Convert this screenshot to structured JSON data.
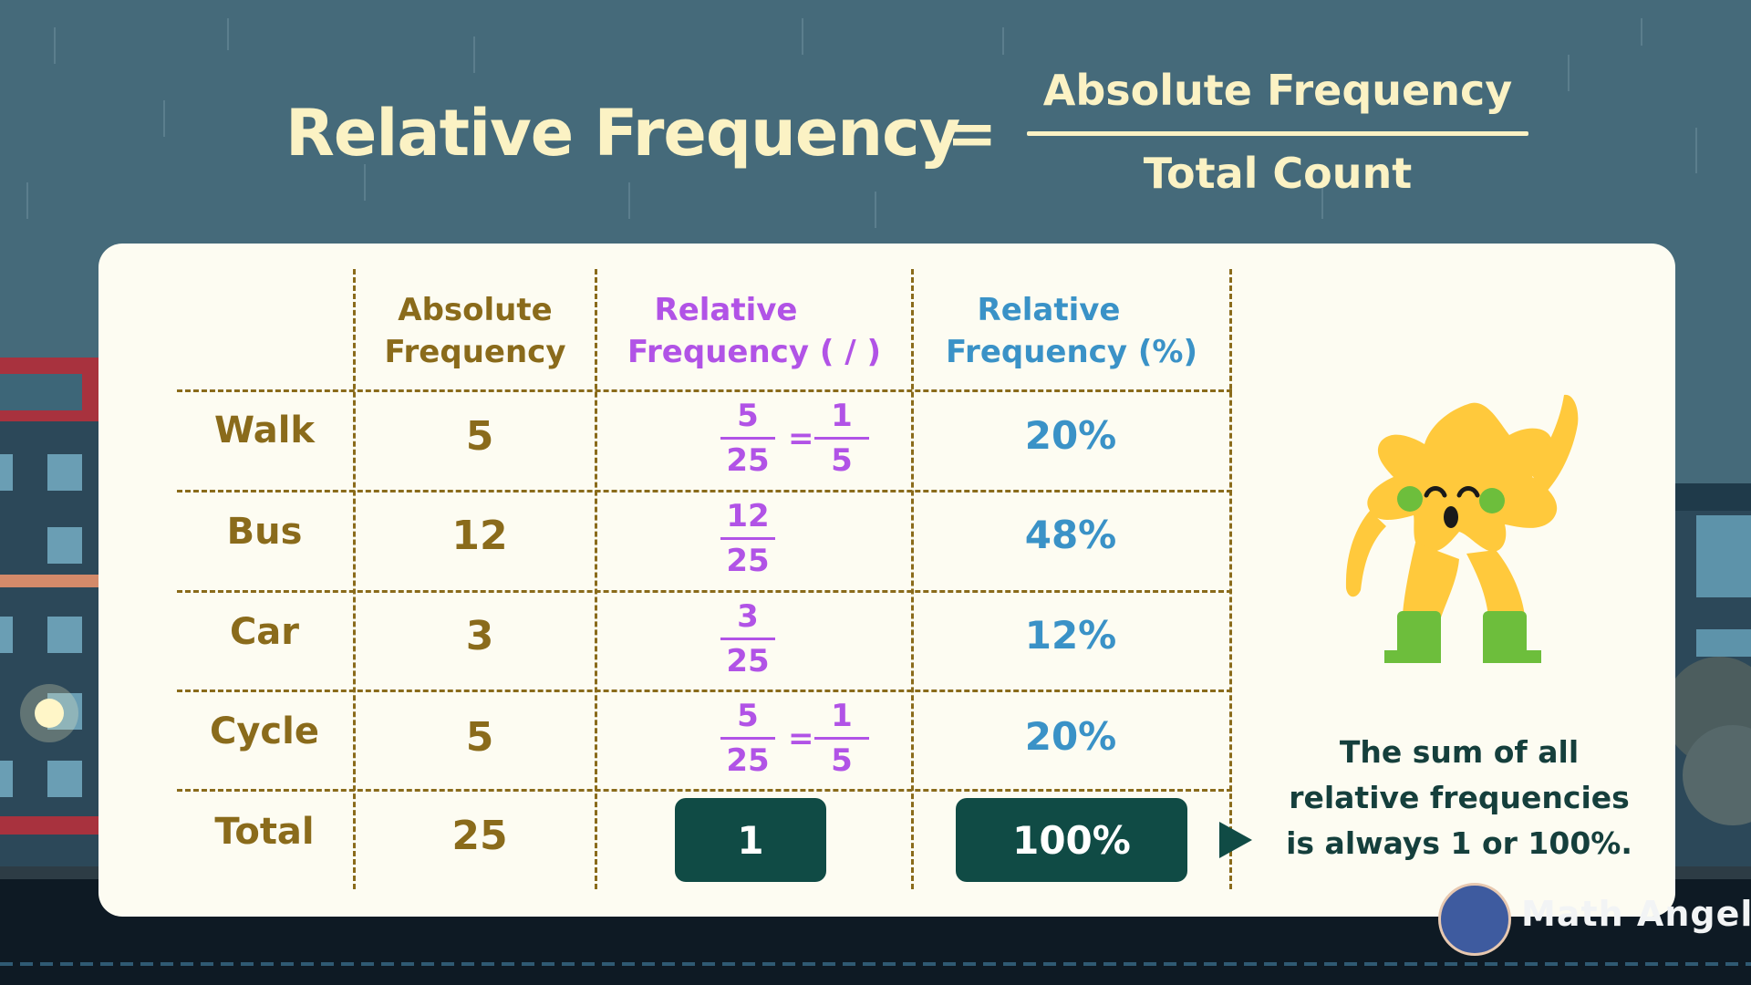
{
  "formula": {
    "lhs": "Relative Frequency",
    "equals": "=",
    "numerator": "Absolute Frequency",
    "denominator": "Total Count"
  },
  "table": {
    "headers": {
      "absolute_line1": "Absolute",
      "absolute_line2": "Frequency",
      "relative_line1": "Relative",
      "relative_line2": "Frequency ( / )",
      "percent_line1": "Relative",
      "percent_line2": "Frequency (%)"
    },
    "rows": [
      {
        "label": "Walk",
        "absolute": "5",
        "frac_num": "5",
        "frac_den": "25",
        "eq": "=",
        "simp_num": "1",
        "simp_den": "5",
        "percent": "20%"
      },
      {
        "label": "Bus",
        "absolute": "12",
        "frac_num": "12",
        "frac_den": "25",
        "percent": "48%"
      },
      {
        "label": "Car",
        "absolute": "3",
        "frac_num": "3",
        "frac_den": "25",
        "percent": "12%"
      },
      {
        "label": "Cycle",
        "absolute": "5",
        "frac_num": "5",
        "frac_den": "25",
        "eq": "=",
        "simp_num": "1",
        "simp_den": "5",
        "percent": "20%"
      }
    ],
    "total": {
      "label": "Total",
      "absolute": "25",
      "relative": "1",
      "percent": "100%"
    }
  },
  "note": {
    "line1": "The sum of all",
    "line2": "relative frequencies",
    "line3": "is always 1 or 100%."
  },
  "brand": {
    "name": "Math Angel"
  },
  "colors": {
    "background": "#456A7A",
    "card": "#FDFCF2",
    "header_text": "#FBF2C4",
    "gold": "#8A6B1B",
    "purple": "#B153E6",
    "blue": "#3A92C7",
    "pill": "#104B45",
    "star": "#FFC93C",
    "boots": "#6DBE3C"
  }
}
